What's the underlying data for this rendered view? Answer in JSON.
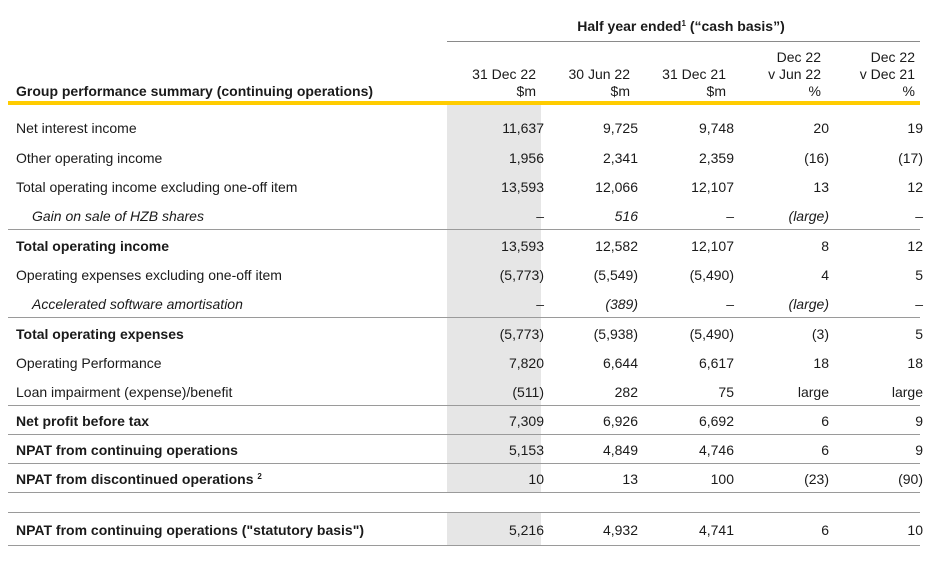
{
  "header": {
    "super_prefix": "Half year ended",
    "super_note": "1",
    "super_suffix": "(“cash basis”)",
    "title": "Group performance summary (continuing operations)",
    "columns": [
      {
        "line1": "31 Dec 22",
        "line2": "$m"
      },
      {
        "line1": "30 Jun 22",
        "line2": "$m"
      },
      {
        "line1": "31 Dec 21",
        "line2": "$m"
      },
      {
        "line1": "Dec 22",
        "line2": "v Jun 22",
        "line3": "%"
      },
      {
        "line1": "Dec 22",
        "line2": "v Dec 21",
        "line3": "%"
      }
    ]
  },
  "rows": [
    {
      "label": "Net interest income",
      "values": [
        "11,637",
        "9,725",
        "9,748",
        "20",
        "19"
      ]
    },
    {
      "label": "Other operating income",
      "values": [
        "1,956",
        "2,341",
        "2,359",
        "(16)",
        "(17)"
      ]
    },
    {
      "label": "Total operating income excluding one-off item",
      "values": [
        "13,593",
        "12,066",
        "12,107",
        "13",
        "12"
      ]
    },
    {
      "label": "Gain on sale of HZB shares",
      "values": [
        "–",
        "516",
        "–",
        "(large)",
        "–"
      ]
    },
    {
      "label": "Total operating income",
      "values": [
        "13,593",
        "12,582",
        "12,107",
        "8",
        "12"
      ]
    },
    {
      "label": "Operating expenses excluding one-off item",
      "values": [
        "(5,773)",
        "(5,549)",
        "(5,490)",
        "4",
        "5"
      ]
    },
    {
      "label": "Accelerated software amortisation",
      "values": [
        "–",
        "(389)",
        "–",
        "(large)",
        "–"
      ]
    },
    {
      "label": "Total operating expenses",
      "values": [
        "(5,773)",
        "(5,938)",
        "(5,490)",
        "(3)",
        "5"
      ]
    },
    {
      "label": "Operating Performance",
      "values": [
        "7,820",
        "6,644",
        "6,617",
        "18",
        "18"
      ]
    },
    {
      "label": "Loan impairment (expense)/benefit",
      "values": [
        "(511)",
        "282",
        "75",
        "large",
        "large"
      ]
    },
    {
      "label": "Net profit before tax",
      "values": [
        "7,309",
        "6,926",
        "6,692",
        "6",
        "9"
      ]
    },
    {
      "label": "NPAT from continuing operations",
      "values": [
        "5,153",
        "4,849",
        "4,746",
        "6",
        "9"
      ]
    },
    {
      "label": "NPAT from discontinued operations",
      "note": "2",
      "values": [
        "10",
        "13",
        "100",
        "(23)",
        "(90)"
      ]
    },
    {
      "label": "NPAT from continuing operations (\"statutory basis\")",
      "values": [
        "5,216",
        "4,932",
        "4,741",
        "6",
        "10"
      ]
    }
  ]
}
